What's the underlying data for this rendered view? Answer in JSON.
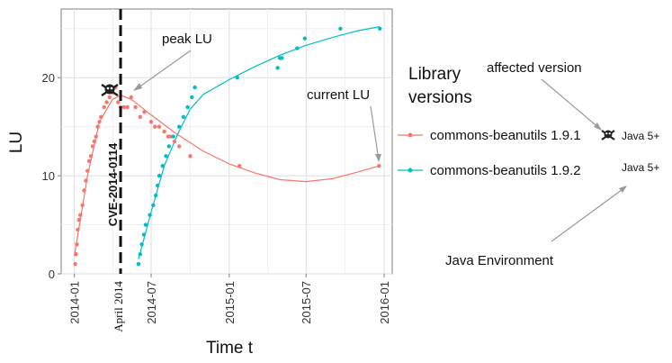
{
  "chart_data": {
    "type": "scatter",
    "xlabel": "Time t",
    "ylabel": "LU",
    "ylim": [
      0,
      27
    ],
    "x_range": [
      "2013-12-01",
      "2016-01-20"
    ],
    "x_ticks": [
      "2014-01",
      "2014-07",
      "2015-01",
      "2015-07",
      "2016-01"
    ],
    "y_ticks": [
      0,
      10,
      20
    ],
    "grid": true,
    "legend": {
      "title": "Library versions",
      "position": "right"
    },
    "series": [
      {
        "name": "commons-beanutils 1.9.1",
        "color": "#F8766D",
        "points": [
          [
            "2014-01-03",
            1
          ],
          [
            "2014-01-05",
            2
          ],
          [
            "2014-01-07",
            3
          ],
          [
            "2014-01-09",
            4.5
          ],
          [
            "2014-01-12",
            5.5
          ],
          [
            "2014-01-15",
            6
          ],
          [
            "2014-01-20",
            7
          ],
          [
            "2014-01-24",
            8.5
          ],
          [
            "2014-01-28",
            9.5
          ],
          [
            "2014-02-01",
            10.5
          ],
          [
            "2014-02-05",
            11.5
          ],
          [
            "2014-02-09",
            12
          ],
          [
            "2014-02-13",
            13
          ],
          [
            "2014-02-17",
            13.5
          ],
          [
            "2014-02-21",
            14
          ],
          [
            "2014-02-25",
            15
          ],
          [
            "2014-03-01",
            15.5
          ],
          [
            "2014-03-05",
            16
          ],
          [
            "2014-03-12",
            17
          ],
          [
            "2014-03-18",
            17.5
          ],
          [
            "2014-03-25",
            18
          ],
          [
            "2014-04-01",
            18.5
          ],
          [
            "2014-04-08",
            19
          ],
          [
            "2014-04-14",
            17.5
          ],
          [
            "2014-04-20",
            17
          ],
          [
            "2014-04-28",
            17
          ],
          [
            "2014-05-06",
            17
          ],
          [
            "2014-05-15",
            18
          ],
          [
            "2014-05-25",
            17
          ],
          [
            "2014-06-05",
            16
          ],
          [
            "2014-06-15",
            16.5
          ],
          [
            "2014-07-01",
            15.5
          ],
          [
            "2014-07-10",
            15
          ],
          [
            "2014-07-20",
            15
          ],
          [
            "2014-08-01",
            14.5
          ],
          [
            "2014-08-10",
            14
          ],
          [
            "2014-08-15",
            14
          ],
          [
            "2014-08-25",
            13.5
          ],
          [
            "2014-09-05",
            13
          ],
          [
            "2014-10-01",
            12
          ],
          [
            "2015-01-25",
            11
          ],
          [
            "2015-12-20",
            11
          ]
        ],
        "trend": [
          [
            "2014-01-01",
            1.8
          ],
          [
            "2014-02-01",
            10
          ],
          [
            "2014-03-01",
            15.5
          ],
          [
            "2014-04-01",
            17.8
          ],
          [
            "2014-04-20",
            18.2
          ],
          [
            "2014-05-15",
            17.8
          ],
          [
            "2014-07-01",
            16.2
          ],
          [
            "2014-09-01",
            14.2
          ],
          [
            "2014-11-01",
            12.5
          ],
          [
            "2015-01-01",
            11.2
          ],
          [
            "2015-03-01",
            10.3
          ],
          [
            "2015-05-01",
            9.6
          ],
          [
            "2015-07-01",
            9.4
          ],
          [
            "2015-09-01",
            9.7
          ],
          [
            "2015-11-01",
            10.4
          ],
          [
            "2015-12-20",
            11
          ]
        ]
      },
      {
        "name": "commons-beanutils 1.9.2",
        "color": "#00BFC4",
        "points": [
          [
            "2014-06-01",
            1
          ],
          [
            "2014-06-05",
            2
          ],
          [
            "2014-06-09",
            3
          ],
          [
            "2014-06-14",
            4
          ],
          [
            "2014-06-18",
            5
          ],
          [
            "2014-06-28",
            6
          ],
          [
            "2014-07-06",
            7
          ],
          [
            "2014-07-12",
            8
          ],
          [
            "2014-07-16",
            9
          ],
          [
            "2014-07-20",
            10
          ],
          [
            "2014-07-28",
            11
          ],
          [
            "2014-08-05",
            12
          ],
          [
            "2014-08-12",
            13
          ],
          [
            "2014-08-22",
            14
          ],
          [
            "2014-09-05",
            15
          ],
          [
            "2014-09-15",
            16
          ],
          [
            "2014-09-25",
            17
          ],
          [
            "2014-10-05",
            18
          ],
          [
            "2014-10-12",
            19
          ],
          [
            "2015-01-20",
            20
          ],
          [
            "2015-04-25",
            21
          ],
          [
            "2015-04-30",
            22
          ],
          [
            "2015-05-05",
            22
          ],
          [
            "2015-06-10",
            23
          ],
          [
            "2015-06-28",
            24
          ],
          [
            "2015-09-20",
            25
          ],
          [
            "2015-12-22",
            25
          ]
        ],
        "trend": [
          [
            "2014-06-01",
            1.5
          ],
          [
            "2014-07-01",
            6.3
          ],
          [
            "2014-08-01",
            11
          ],
          [
            "2014-09-01",
            14.2
          ],
          [
            "2014-10-01",
            16.8
          ],
          [
            "2014-11-01",
            18.3
          ],
          [
            "2015-01-01",
            19.8
          ],
          [
            "2015-03-01",
            21.1
          ],
          [
            "2015-05-01",
            22.3
          ],
          [
            "2015-07-01",
            23.3
          ],
          [
            "2015-09-01",
            24.1
          ],
          [
            "2015-11-01",
            24.8
          ],
          [
            "2015-12-22",
            25.2
          ]
        ]
      }
    ],
    "vline": {
      "date": "2014-04-20",
      "label": "CVE-2014-0114",
      "sublabel": "April 2014"
    },
    "annotations": {
      "peak": "peak LU",
      "current": "current LU",
      "affected": "affected version",
      "java_env": "Java Environment",
      "java_badge": "Java 5+"
    }
  }
}
